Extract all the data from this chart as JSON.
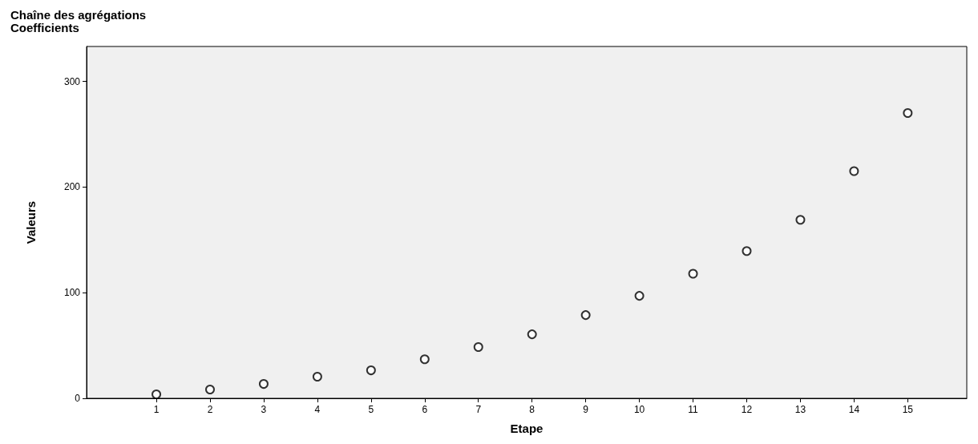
{
  "chart_data": {
    "type": "scatter",
    "title": "Chaîne des agrégations",
    "subtitle": "Coefficients",
    "xlabel": "Etape",
    "ylabel": "Valeurs",
    "x": [
      1,
      2,
      3,
      4,
      5,
      6,
      7,
      8,
      9,
      10,
      11,
      12,
      13,
      14,
      15
    ],
    "series": [
      {
        "color": "#000000",
        "values": [
          3.8,
          8.3,
          13.6,
          20.5,
          26.5,
          37,
          48.5,
          60.6,
          78.8,
          97,
          118,
          139.4,
          169,
          215,
          270
        ]
      }
    ],
    "xlim": [
      -0.3,
      16.1
    ],
    "xticks": [
      1,
      2,
      3,
      4,
      5,
      6,
      7,
      8,
      9,
      10,
      11,
      12,
      13,
      14,
      15
    ],
    "ylim": [
      0,
      333
    ],
    "yticks": [
      0,
      100,
      200,
      300
    ],
    "grid": false,
    "marker": "circle"
  }
}
